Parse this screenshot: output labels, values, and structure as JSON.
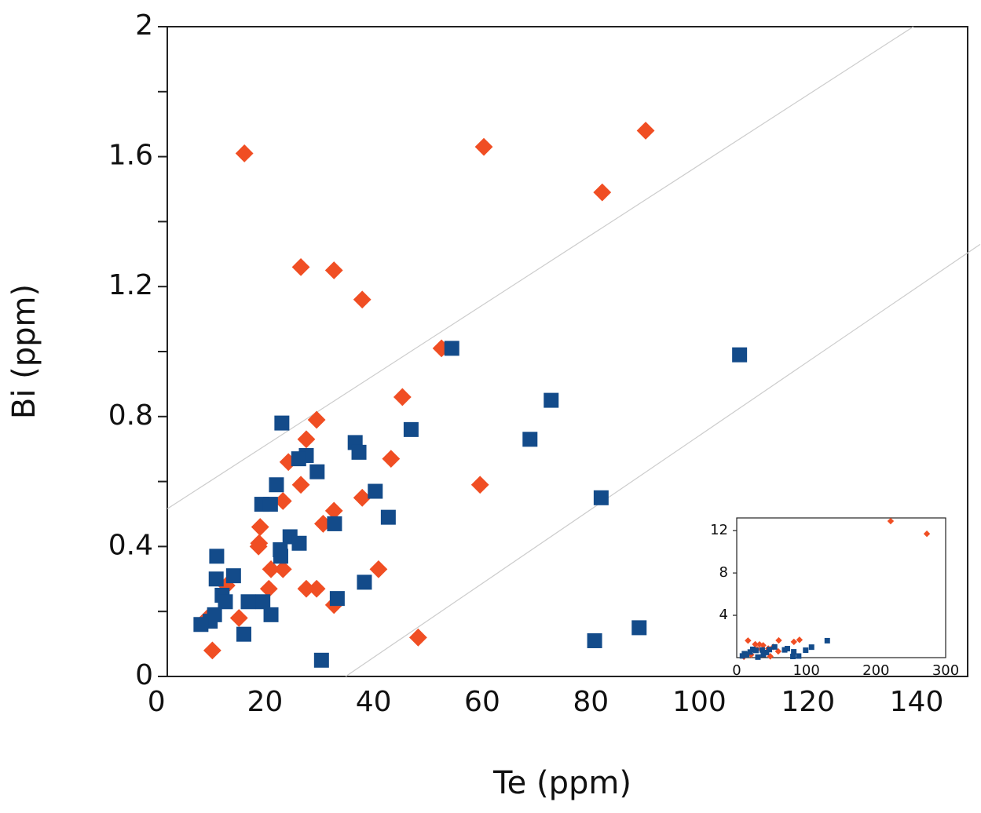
{
  "chart_data": [
    {
      "type": "scatter",
      "xlabel": "Te (ppm)",
      "ylabel": "Bi (ppm)",
      "xlim": [
        2,
        149.4
      ],
      "ylim": [
        0,
        2
      ],
      "xticks": [
        0,
        20,
        40,
        60,
        80,
        100,
        120,
        140
      ],
      "yticks": [
        0,
        0.4,
        0.8,
        1.2,
        1.6,
        2
      ],
      "yminorticks": [
        0.2,
        0.6,
        1.0,
        1.4,
        1.8
      ],
      "reference_lines": {
        "color": "#cccccc",
        "lines": [
          {
            "x": [
              2,
              139.4
            ],
            "values": [
              0.516,
              2
            ]
          },
          {
            "x": [
              34.85,
              151.7
            ],
            "values": [
              0,
              1.33
            ]
          }
        ]
      },
      "series": [
        {
          "color": "#f04e23",
          "marker": "diamond",
          "x": [
            16.2,
            60.3,
            90.1,
            82.1,
            26.6,
            32.7,
            37.9,
            52.5,
            45.3,
            29.5,
            27.6,
            24.3,
            43.2,
            26.6,
            59.6,
            23.3,
            37.9,
            32.7,
            19.1,
            18.9,
            18.8,
            30.7,
            40.9,
            21.1,
            23.3,
            20.7,
            12.9,
            27.6,
            29.5,
            32.7,
            15.2,
            9.4,
            10.3,
            48.2
          ],
          "values": [
            1.61,
            1.63,
            1.68,
            1.49,
            1.26,
            1.25,
            1.16,
            1.01,
            0.86,
            0.79,
            0.73,
            0.66,
            0.67,
            0.59,
            0.59,
            0.54,
            0.55,
            0.51,
            0.46,
            0.41,
            0.4,
            0.47,
            0.33,
            0.33,
            0.33,
            0.27,
            0.28,
            0.27,
            0.27,
            0.22,
            0.18,
            0.18,
            0.08,
            0.12
          ]
        },
        {
          "color": "#134b8a",
          "marker": "square",
          "x": [
            54.4,
            107.4,
            72.7,
            23.1,
            46.9,
            68.8,
            36.6,
            37.3,
            27.6,
            26.2,
            29.6,
            22.1,
            40.3,
            81.9,
            19.4,
            21.0,
            42.7,
            32.8,
            24.6,
            26.3,
            22.8,
            22.9,
            11.1,
            14.2,
            11.0,
            38.3,
            12.1,
            12.7,
            16.9,
            19.6,
            33.3,
            21.1,
            10.7,
            9.9,
            8.2,
            16.1,
            80.7,
            88.9,
            30.4
          ],
          "values": [
            1.01,
            0.99,
            0.85,
            0.78,
            0.76,
            0.73,
            0.72,
            0.69,
            0.68,
            0.67,
            0.63,
            0.59,
            0.57,
            0.55,
            0.53,
            0.53,
            0.49,
            0.47,
            0.43,
            0.41,
            0.39,
            0.37,
            0.37,
            0.31,
            0.3,
            0.29,
            0.25,
            0.23,
            0.23,
            0.23,
            0.24,
            0.19,
            0.19,
            0.17,
            0.16,
            0.13,
            0.11,
            0.15,
            0.05
          ]
        }
      ]
    },
    {
      "type": "scatter",
      "xlim": [
        0,
        300
      ],
      "ylim": [
        0,
        13.2
      ],
      "xticks": [
        0,
        100,
        200,
        300
      ],
      "yticks": [
        4,
        8,
        12
      ],
      "series": [
        {
          "color": "#f04e23",
          "marker": "diamond",
          "x": [
            221,
            273,
            16.2,
            60.3,
            90.1,
            82.1,
            26.6,
            32.7,
            37.9,
            52.5,
            45.3,
            29.5,
            59.6,
            48.2,
            10.3,
            20.7
          ],
          "values": [
            12.9,
            11.7,
            1.61,
            1.63,
            1.68,
            1.49,
            1.26,
            1.25,
            1.16,
            1.01,
            0.86,
            0.79,
            0.59,
            0.12,
            0.08,
            0.27
          ]
        },
        {
          "color": "#134b8a",
          "marker": "square",
          "x": [
            130,
            99,
            54.4,
            72.7,
            23.1,
            46.9,
            68.8,
            36.6,
            27.6,
            81.9,
            19.4,
            42.7,
            11.1,
            14.2,
            38.3,
            12.1,
            80.7,
            88.9,
            30.4,
            8.2,
            107.4
          ],
          "values": [
            1.6,
            0.7,
            1.01,
            0.85,
            0.78,
            0.76,
            0.73,
            0.72,
            0.68,
            0.55,
            0.53,
            0.49,
            0.37,
            0.31,
            0.29,
            0.25,
            0.11,
            0.15,
            0.05,
            0.16,
            0.99
          ]
        }
      ]
    }
  ]
}
